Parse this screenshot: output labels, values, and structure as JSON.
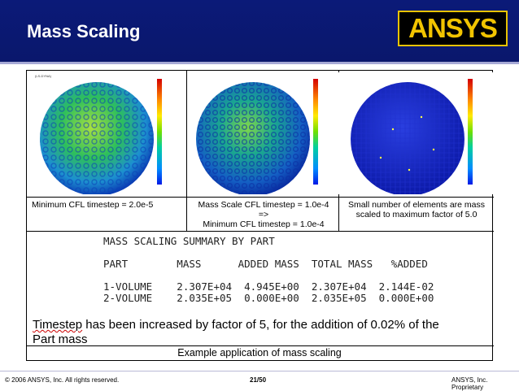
{
  "header": {
    "title": "Mass Scaling",
    "logo": "ANSYS"
  },
  "panels": [
    {
      "caption": "Minimum CFL timestep = 2.0e-5"
    },
    {
      "caption_line1": "Mass Scale CFL timestep = 1.0e-4",
      "caption_line2": "=>",
      "caption_line3": "Minimum CFL timestep = 1.0e-4"
    },
    {
      "caption_line1": "Small number of elements are mass",
      "caption_line2": "scaled to maximum factor of 5.0"
    }
  ],
  "summary": {
    "title": "MASS SCALING SUMMARY BY PART",
    "headers": "PART        MASS      ADDED MASS  TOTAL MASS   %ADDED",
    "rows": [
      "1-VOLUME    2.307E+04  4.945E+00  2.307E+04  2.144E-02",
      "2-VOLUME    2.035E+05  0.000E+00  2.035E+05  0.000E+00"
    ]
  },
  "note": {
    "line1_a": "Timestep",
    "line1_b": " has been increased by factor of 5, for the addition of 0.02% of the",
    "line2": "Part mass"
  },
  "example": "Example application of mass scaling",
  "footer": {
    "copyright": "© 2006 ANSYS, Inc.  All rights reserved.",
    "page": "21/50",
    "proprietary": "ANSYS, Inc. Proprietary"
  }
}
